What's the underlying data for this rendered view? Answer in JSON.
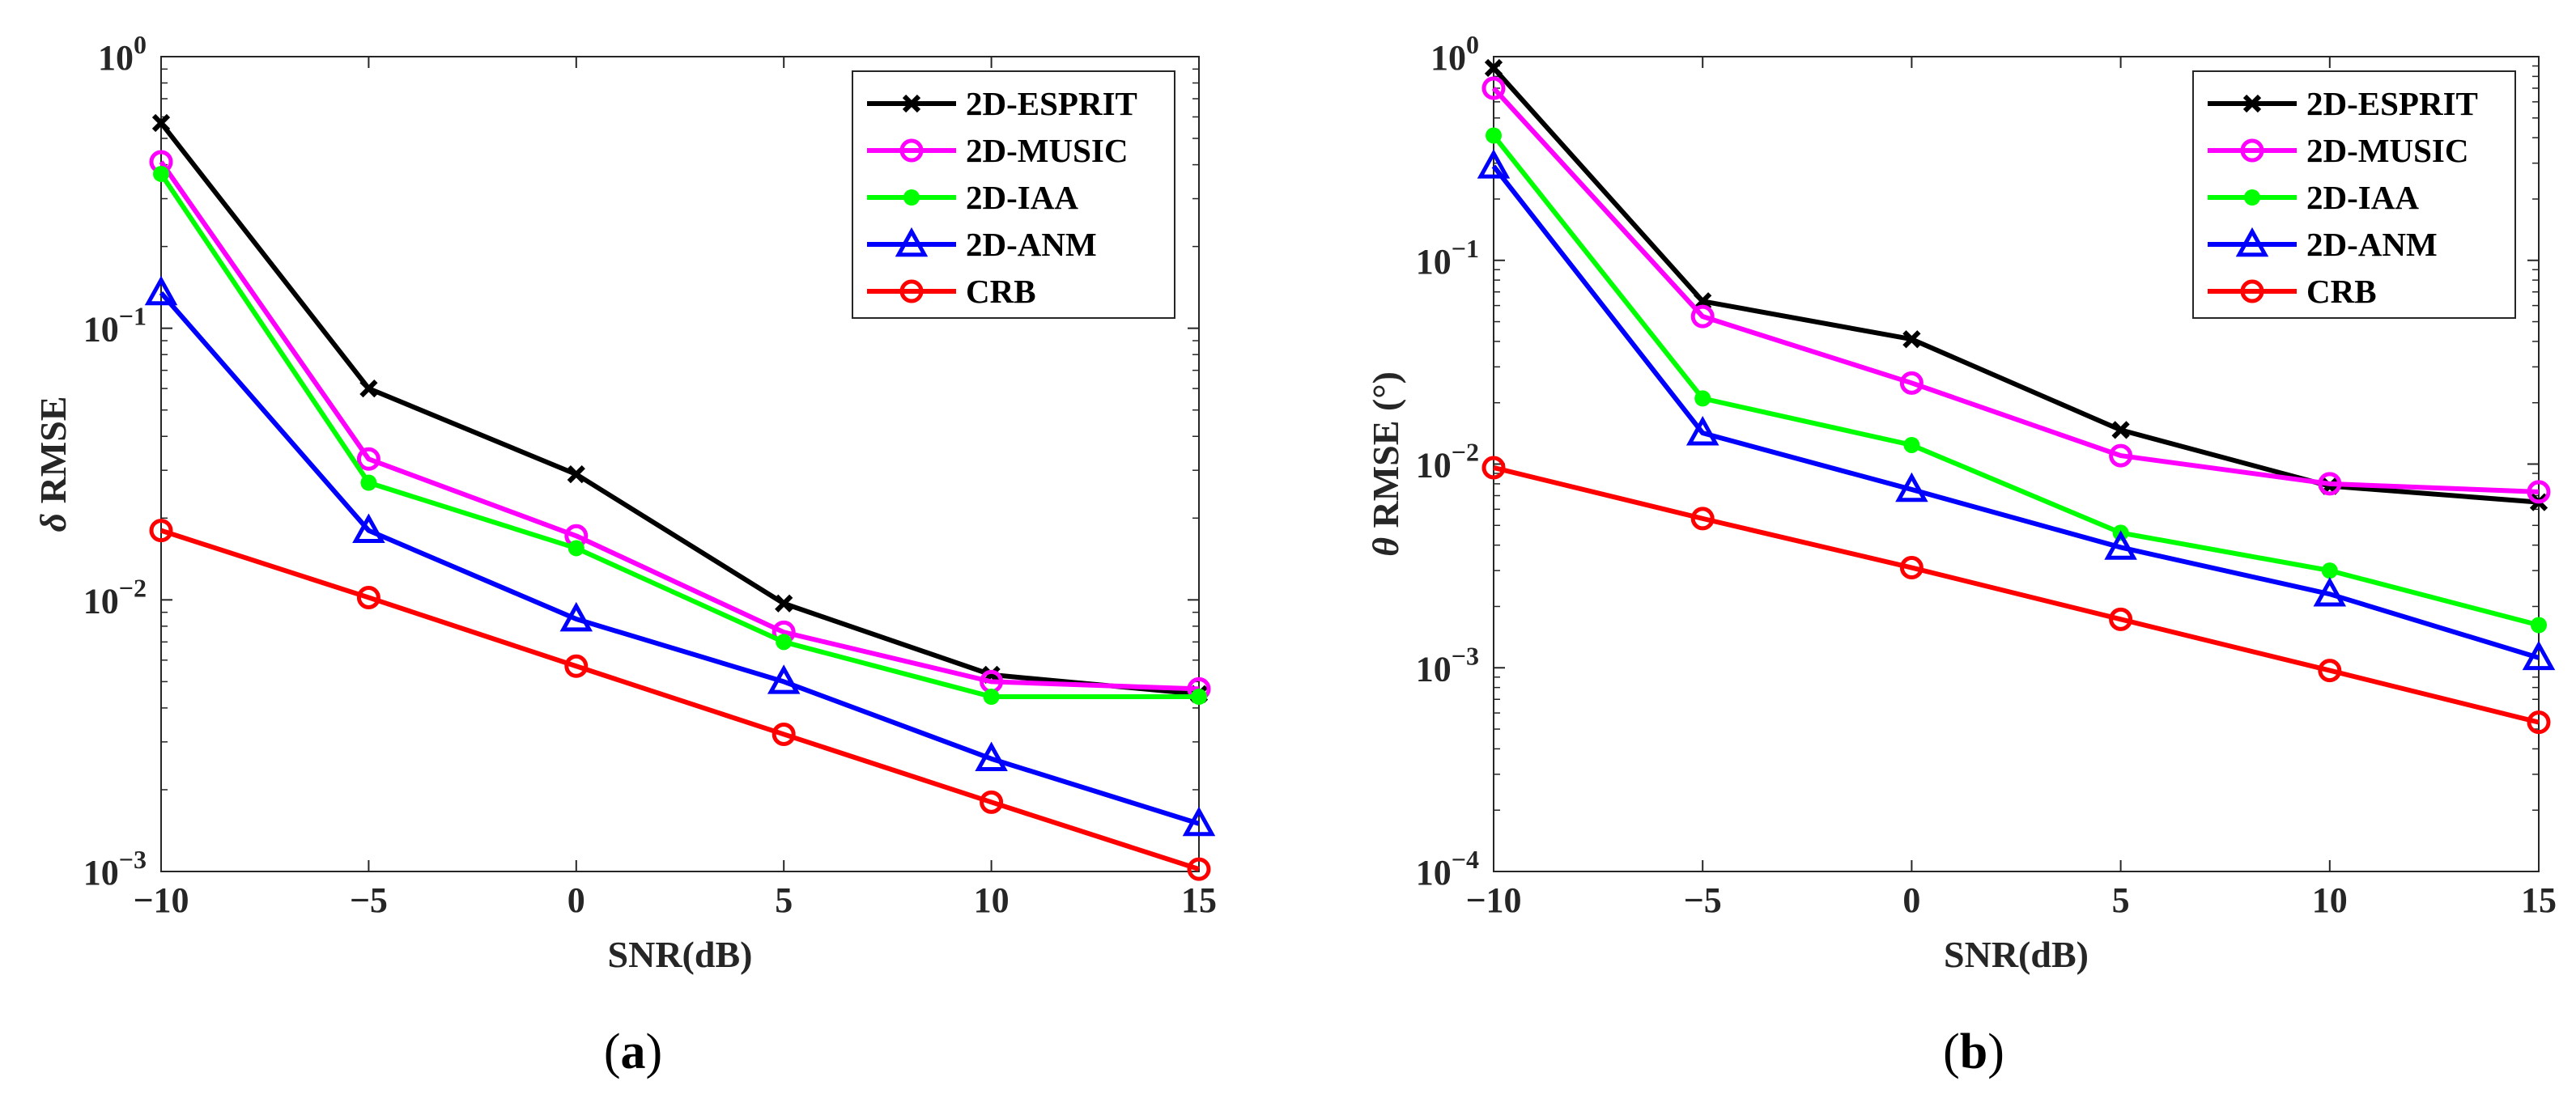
{
  "chart_data": [
    {
      "type": "line",
      "panel_label": "(a)",
      "xlabel": "SNR(dB)",
      "ylabel": "δ RMSE",
      "ylabel_symbol": "δ",
      "ylabel_rest": " RMSE",
      "yscale": "log",
      "xlim": [
        -10,
        15
      ],
      "ylim": [
        0.001,
        1
      ],
      "xticks": [
        "−10",
        "−5",
        "0",
        "5",
        "10",
        "15"
      ],
      "xtick_values": [
        -10,
        -5,
        0,
        5,
        10,
        15
      ],
      "yticks": [
        {
          "base": "10",
          "exp": "0",
          "value": 1
        },
        {
          "base": "10",
          "exp": "−1",
          "value": 0.1
        },
        {
          "base": "10",
          "exp": "−2",
          "value": 0.01
        },
        {
          "base": "10",
          "exp": "−3",
          "value": 0.001
        }
      ],
      "grid": false,
      "legend_position": "top-right",
      "x": [
        -10,
        -5,
        0,
        5,
        10,
        15
      ],
      "series": [
        {
          "name": "2D-ESPRIT",
          "color": "#000000",
          "marker": "x",
          "values": [
            0.57,
            0.06,
            0.029,
            0.0097,
            0.0053,
            0.0045
          ]
        },
        {
          "name": "2D-MUSIC",
          "color": "#ff00ff",
          "marker": "circle",
          "values": [
            0.41,
            0.033,
            0.0172,
            0.0076,
            0.005,
            0.0047
          ]
        },
        {
          "name": "2D-IAA",
          "color": "#00ff00",
          "marker": "dot",
          "values": [
            0.37,
            0.027,
            0.0155,
            0.007,
            0.0044,
            0.0044
          ]
        },
        {
          "name": "2D-ANM",
          "color": "#0000ff",
          "marker": "triangle",
          "values": [
            0.135,
            0.018,
            0.0085,
            0.005,
            0.0026,
            0.0015
          ]
        },
        {
          "name": "CRB",
          "color": "#ff0000",
          "marker": "circle",
          "values": [
            0.018,
            0.0102,
            0.0057,
            0.0032,
            0.0018,
            0.00102
          ]
        }
      ]
    },
    {
      "type": "line",
      "panel_label": "(b)",
      "xlabel": "SNR(dB)",
      "ylabel": "θ RMSE (°)",
      "ylabel_symbol": "θ",
      "ylabel_rest": " RMSE (°)",
      "yscale": "log",
      "xlim": [
        -10,
        15
      ],
      "ylim": [
        0.0001,
        1
      ],
      "xticks": [
        "−10",
        "−5",
        "0",
        "5",
        "10",
        "15"
      ],
      "xtick_values": [
        -10,
        -5,
        0,
        5,
        10,
        15
      ],
      "yticks": [
        {
          "base": "10",
          "exp": "0",
          "value": 1
        },
        {
          "base": "10",
          "exp": "−1",
          "value": 0.1
        },
        {
          "base": "10",
          "exp": "−2",
          "value": 0.01
        },
        {
          "base": "10",
          "exp": "−3",
          "value": 0.001
        },
        {
          "base": "10",
          "exp": "−4",
          "value": 0.0001
        }
      ],
      "grid": false,
      "legend_position": "top-right",
      "x": [
        -10,
        -5,
        0,
        5,
        10,
        15
      ],
      "series": [
        {
          "name": "2D-ESPRIT",
          "color": "#000000",
          "marker": "x",
          "values": [
            0.88,
            0.063,
            0.041,
            0.0147,
            0.0078,
            0.0065
          ]
        },
        {
          "name": "2D-MUSIC",
          "color": "#ff00ff",
          "marker": "circle",
          "values": [
            0.7,
            0.053,
            0.025,
            0.011,
            0.008,
            0.0073
          ]
        },
        {
          "name": "2D-IAA",
          "color": "#00ff00",
          "marker": "dot",
          "values": [
            0.41,
            0.021,
            0.0124,
            0.0046,
            0.003,
            0.00162
          ]
        },
        {
          "name": "2D-ANM",
          "color": "#0000ff",
          "marker": "triangle",
          "values": [
            0.29,
            0.0142,
            0.0075,
            0.0039,
            0.0023,
            0.00112
          ]
        },
        {
          "name": "CRB",
          "color": "#ff0000",
          "marker": "circle",
          "values": [
            0.0096,
            0.0054,
            0.0031,
            0.00173,
            0.00097,
            0.00054
          ]
        }
      ]
    }
  ]
}
